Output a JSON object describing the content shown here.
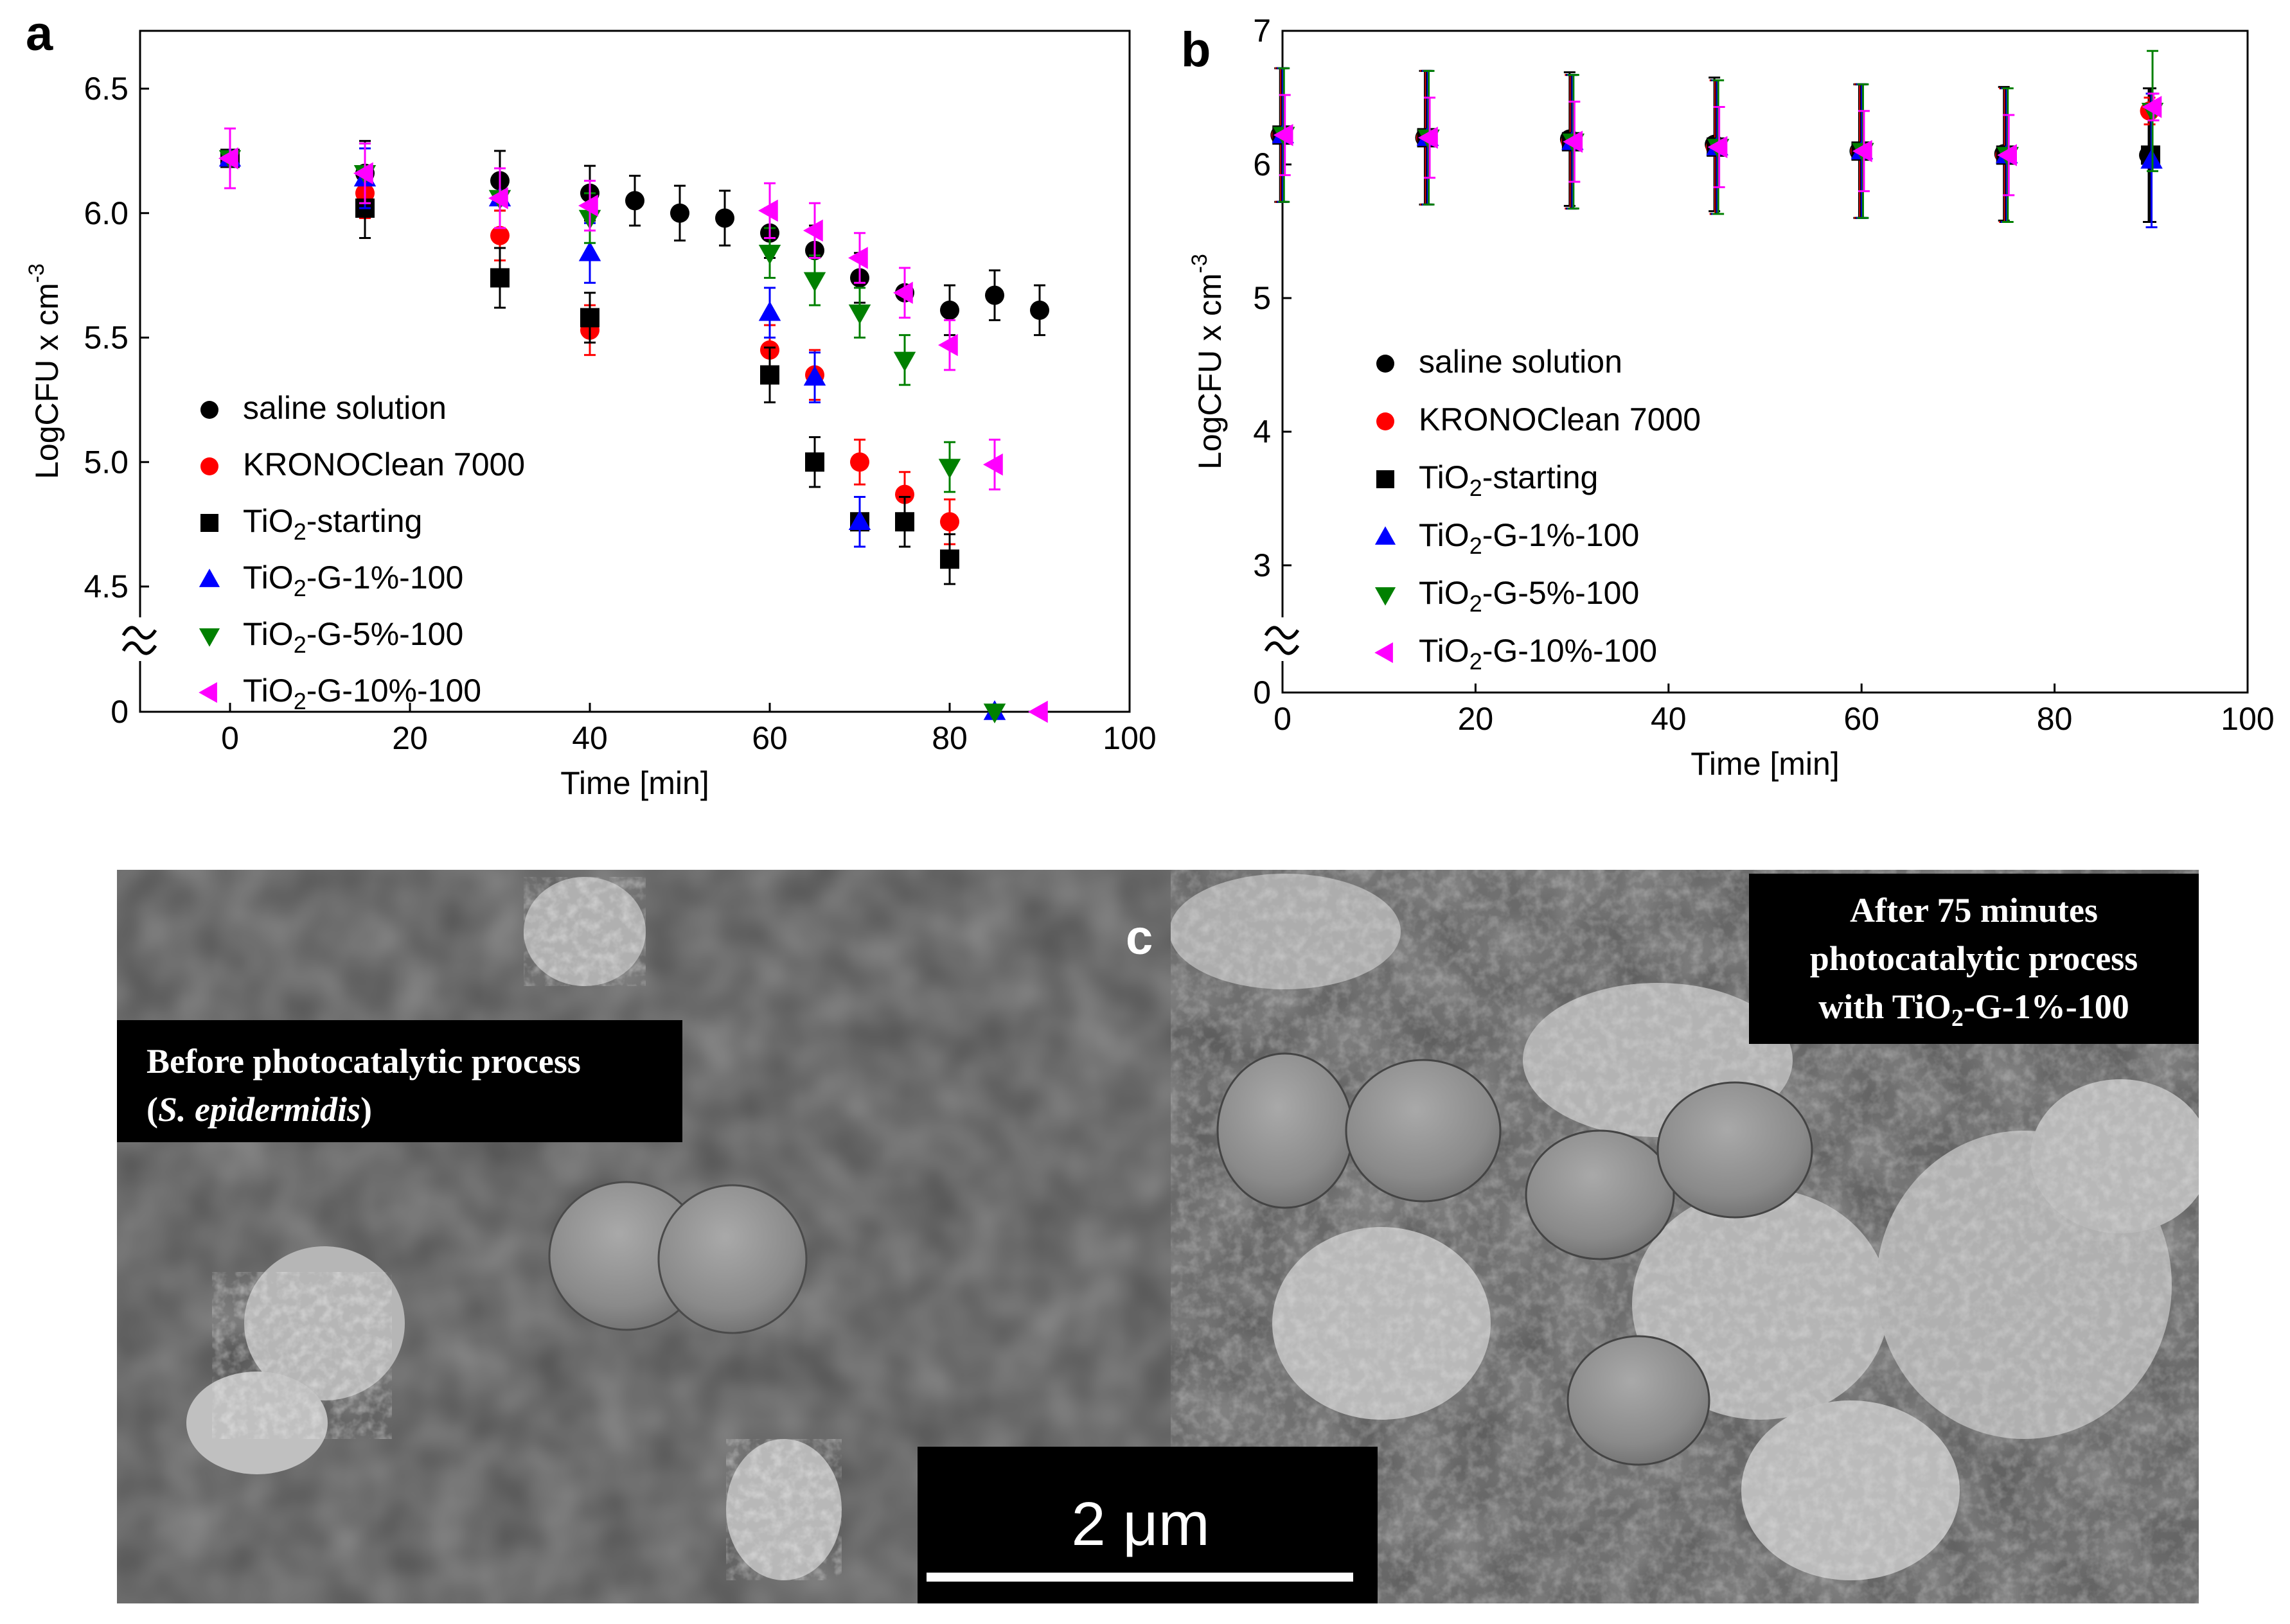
{
  "figure": {
    "panels": [
      {
        "letter": "a"
      },
      {
        "letter": "b"
      }
    ],
    "sem": {
      "letter": "c",
      "left_caption_line1": "Before photocatalytic process",
      "left_caption_line2_open": "(",
      "left_caption_line2_italic": "S. epidermidis",
      "left_caption_line2_close": ")",
      "right_caption_line1": "After  75 minutes",
      "right_caption_line2": "photocatalytic process",
      "right_caption_line3_prefix": "with TiO",
      "right_caption_line3_sub": "2",
      "right_caption_line3_suffix": "-G-1%-100",
      "scale_bar_label": "2 μm"
    }
  },
  "chart_data": [
    {
      "panel": "a",
      "type": "scatter",
      "xlabel": "Time [min]",
      "ylabel": "LogCFU x cm",
      "ylabel_superscript": "-3",
      "xlim": [
        -10,
        100
      ],
      "x_ticks": [
        0,
        20,
        40,
        60,
        80,
        100
      ],
      "y_ticks": [
        "0",
        "4.5",
        "5.0",
        "5.5",
        "6.0",
        "6.5"
      ],
      "y_axis_break": "between 0 and 4.5",
      "legend_position": "lower-left",
      "series": [
        {
          "name": "saline solution",
          "marker": "circle",
          "color": "#000000",
          "x": [
            0,
            15,
            30,
            40,
            45,
            50,
            55,
            60,
            65,
            70,
            75,
            80,
            85,
            90
          ],
          "y": [
            6.22,
            6.16,
            6.13,
            6.08,
            6.05,
            6.0,
            5.98,
            5.92,
            5.85,
            5.74,
            5.68,
            5.61,
            5.67,
            5.61
          ],
          "err": [
            0.12,
            0.13,
            0.12,
            0.11,
            0.1,
            0.11,
            0.11,
            0.1,
            0.1,
            0.1,
            0.1,
            0.1,
            0.1,
            0.1
          ]
        },
        {
          "name": "KRONOClean 7000",
          "marker": "circle",
          "color": "#ff0000",
          "x": [
            0,
            15,
            30,
            40,
            60,
            65,
            70,
            75,
            80
          ],
          "y": [
            6.22,
            6.08,
            5.91,
            5.53,
            5.45,
            5.35,
            5.0,
            4.87,
            4.76
          ],
          "err": [
            0.12,
            0.1,
            0.1,
            0.1,
            0.1,
            0.1,
            0.09,
            0.09,
            0.09
          ]
        },
        {
          "name": "TiO2-starting",
          "marker": "square",
          "color": "#000000",
          "x": [
            0,
            15,
            30,
            40,
            60,
            65,
            70,
            75,
            80
          ],
          "y": [
            6.22,
            6.02,
            5.74,
            5.58,
            5.35,
            5.0,
            4.76,
            4.76,
            4.61
          ],
          "err": [
            0.12,
            0.12,
            0.12,
            0.1,
            0.11,
            0.1,
            0.1,
            0.1,
            0.1
          ]
        },
        {
          "name": "TiO2-G-1%-100",
          "marker": "triangle-up",
          "color": "#0000ff",
          "x": [
            0,
            15,
            30,
            40,
            60,
            65,
            70,
            85
          ],
          "y": [
            6.22,
            6.14,
            6.06,
            5.84,
            5.6,
            5.34,
            4.76,
            0
          ],
          "err": [
            0.12,
            0.12,
            0.12,
            0.12,
            0.1,
            0.1,
            0.1,
            0
          ]
        },
        {
          "name": "TiO2-G-5%-100",
          "marker": "triangle-down",
          "color": "#008000",
          "x": [
            0,
            15,
            30,
            40,
            60,
            65,
            70,
            75,
            80,
            85
          ],
          "y": [
            6.22,
            6.16,
            6.06,
            5.98,
            5.84,
            5.73,
            5.6,
            5.41,
            4.98,
            0
          ],
          "err": [
            0.12,
            0.12,
            0.12,
            0.1,
            0.1,
            0.1,
            0.1,
            0.1,
            0.1,
            0
          ]
        },
        {
          "name": "TiO2-G-10%-100",
          "marker": "triangle-left",
          "color": "#ff00ff",
          "x": [
            0,
            15,
            30,
            40,
            60,
            65,
            70,
            75,
            80,
            85,
            90
          ],
          "y": [
            6.22,
            6.16,
            6.06,
            6.03,
            6.01,
            5.93,
            5.82,
            5.68,
            5.47,
            4.99,
            0
          ],
          "err": [
            0.12,
            0.12,
            0.12,
            0.1,
            0.11,
            0.11,
            0.1,
            0.1,
            0.1,
            0.1,
            0
          ]
        }
      ]
    },
    {
      "panel": "b",
      "type": "scatter",
      "xlabel": "Time [min]",
      "ylabel": "LogCFU x cm",
      "ylabel_superscript": "-3",
      "xlim": [
        0,
        100
      ],
      "x_ticks": [
        0,
        20,
        40,
        60,
        80,
        100
      ],
      "y_ticks": [
        "0",
        "3",
        "4",
        "5",
        "6",
        "7"
      ],
      "y_axis_break": "between 0 and 3",
      "legend_position": "lower-left",
      "series": [
        {
          "name": "saline solution",
          "marker": "circle",
          "color": "#000000",
          "x": [
            0,
            15,
            30,
            45,
            60,
            75,
            90
          ],
          "y": [
            6.22,
            6.2,
            6.19,
            6.15,
            6.1,
            6.08,
            6.07
          ],
          "err": [
            0.5,
            0.5,
            0.5,
            0.5,
            0.5,
            0.5,
            0.5
          ]
        },
        {
          "name": "KRONOClean 7000",
          "marker": "circle",
          "color": "#ff0000",
          "x": [
            0,
            15,
            30,
            45,
            60,
            75,
            90
          ],
          "y": [
            6.22,
            6.2,
            6.17,
            6.13,
            6.1,
            6.07,
            6.4
          ],
          "err": [
            0.5,
            0.5,
            0.5,
            0.5,
            0.5,
            0.5,
            0.1
          ]
        },
        {
          "name": "TiO2-starting",
          "marker": "square",
          "color": "#000000",
          "x": [
            0,
            15,
            30,
            45,
            60,
            75,
            90
          ],
          "y": [
            6.22,
            6.2,
            6.17,
            6.13,
            6.1,
            6.07,
            6.07
          ],
          "err": [
            0.5,
            0.5,
            0.5,
            0.5,
            0.5,
            0.5,
            0.5
          ]
        },
        {
          "name": "TiO2-G-1%-100",
          "marker": "triangle-up",
          "color": "#0000ff",
          "x": [
            0,
            15,
            30,
            45,
            60,
            75,
            90
          ],
          "y": [
            6.22,
            6.2,
            6.17,
            6.13,
            6.1,
            6.07,
            6.03
          ],
          "err": [
            0.5,
            0.5,
            0.5,
            0.5,
            0.5,
            0.5,
            0.5
          ]
        },
        {
          "name": "TiO2-G-5%-100",
          "marker": "triangle-down",
          "color": "#008000",
          "x": [
            0,
            15,
            30,
            45,
            60,
            75,
            90
          ],
          "y": [
            6.22,
            6.2,
            6.17,
            6.13,
            6.1,
            6.07,
            6.4
          ],
          "err": [
            0.5,
            0.5,
            0.5,
            0.5,
            0.5,
            0.5,
            0.45
          ]
        },
        {
          "name": "TiO2-G-10%-100",
          "marker": "triangle-left",
          "color": "#ff00ff",
          "x": [
            0,
            15,
            30,
            45,
            60,
            75,
            90
          ],
          "y": [
            6.22,
            6.2,
            6.17,
            6.13,
            6.1,
            6.07,
            6.43
          ],
          "err": [
            0.3,
            0.3,
            0.3,
            0.3,
            0.3,
            0.3,
            0.1
          ]
        }
      ]
    }
  ]
}
